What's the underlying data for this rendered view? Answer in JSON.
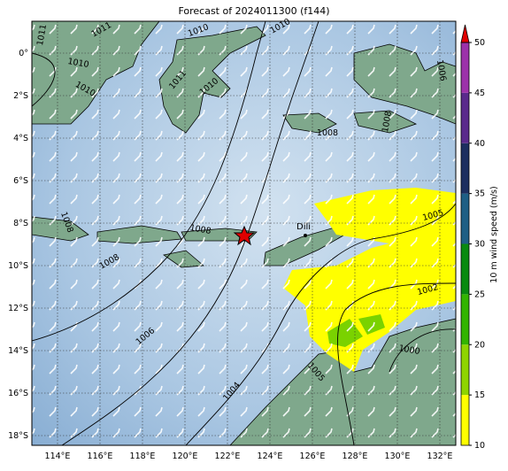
{
  "title": "Forecast of 2024011300 (f144)",
  "lon_ticks": [
    {
      "value": 114,
      "label": "114°E"
    },
    {
      "value": 116,
      "label": "116°E"
    },
    {
      "value": 118,
      "label": "118°E"
    },
    {
      "value": 120,
      "label": "120°E"
    },
    {
      "value": 122,
      "label": "122°E"
    },
    {
      "value": 124,
      "label": "124°E"
    },
    {
      "value": 126,
      "label": "126°E"
    },
    {
      "value": 128,
      "label": "128°E"
    },
    {
      "value": 130,
      "label": "130°E"
    },
    {
      "value": 132,
      "label": "132°E"
    }
  ],
  "lat_ticks": [
    {
      "value": 0,
      "label": "0°"
    },
    {
      "value": -2,
      "label": "2°S"
    },
    {
      "value": -4,
      "label": "4°S"
    },
    {
      "value": -6,
      "label": "6°S"
    },
    {
      "value": -8,
      "label": "8°S"
    },
    {
      "value": -10,
      "label": "10°S"
    },
    {
      "value": -12,
      "label": "12°S"
    },
    {
      "value": -14,
      "label": "14°S"
    },
    {
      "value": -16,
      "label": "16°S"
    },
    {
      "value": -18,
      "label": "18°S"
    }
  ],
  "colorbar": {
    "label": "10 m wind speed (m/s)",
    "ticks": [
      10,
      15,
      20,
      25,
      30,
      35,
      40,
      45,
      50
    ],
    "colors": [
      "#ffff00",
      "#8fd400",
      "#33b400",
      "#0a8a10",
      "#1f5f85",
      "#1d2f60",
      "#5a2a8c",
      "#9c32aa"
    ],
    "over_color": "#e00000"
  },
  "contour_labels": [
    1011,
    1011,
    1010,
    1010,
    1011,
    1010,
    1010,
    1010,
    1008,
    1006,
    1008,
    1008,
    1008,
    1008,
    1006,
    1005,
    1002,
    1000,
    1005,
    1004
  ],
  "place_labels": [
    "Dili"
  ]
}
